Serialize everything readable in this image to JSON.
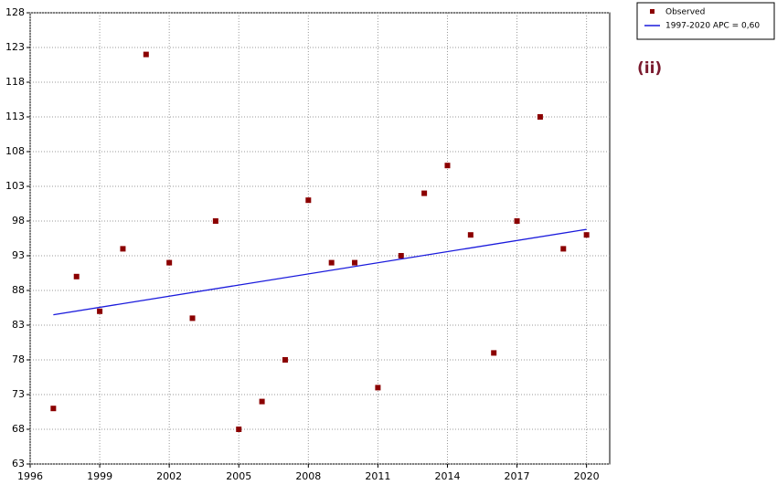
{
  "chart_data": {
    "type": "scatter",
    "annotation": "(ii)",
    "xlim": [
      1996,
      2021
    ],
    "xticks": [
      1996,
      1999,
      2002,
      2005,
      2008,
      2011,
      2014,
      2017,
      2020
    ],
    "ylim": [
      63,
      128
    ],
    "yticks": [
      63,
      68,
      73,
      78,
      83,
      88,
      93,
      98,
      103,
      108,
      113,
      118,
      123,
      128
    ],
    "grid": true,
    "legend": "top-right",
    "series": [
      {
        "name": "Observed",
        "type": "scatter",
        "color": "#8b0000",
        "x": [
          1997,
          1998,
          1999,
          2000,
          2001,
          2002,
          2003,
          2004,
          2005,
          2006,
          2007,
          2008,
          2009,
          2010,
          2011,
          2012,
          2013,
          2014,
          2015,
          2016,
          2017,
          2018,
          2019,
          2020
        ],
        "values": [
          71,
          90,
          85,
          94,
          122,
          92,
          84,
          98,
          68,
          72,
          78,
          101,
          92,
          92,
          74,
          93,
          102,
          106,
          96,
          79,
          98,
          113,
          94,
          96
        ]
      },
      {
        "name": "1997-2020 APC  = 0,60",
        "type": "line",
        "color": "#1a1adc",
        "x": [
          1997,
          2020
        ],
        "values": [
          84.5,
          96.8
        ]
      }
    ]
  }
}
